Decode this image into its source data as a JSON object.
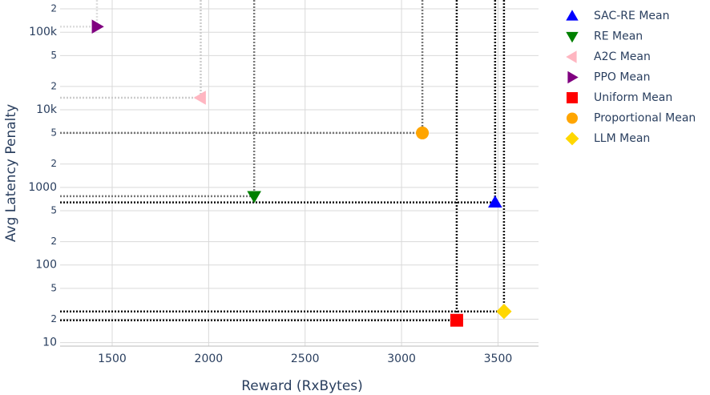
{
  "chart_data": {
    "type": "scatter",
    "x_label": "Reward (RxBytes)",
    "y_label": "Avg Latency Penalty",
    "xlim": [
      1230,
      3710
    ],
    "xticks": [
      1500,
      2000,
      2500,
      3000,
      3500
    ],
    "ylim": [
      9,
      260000
    ],
    "y_log": true,
    "yticks": [
      10,
      {
        "value": 20,
        "label": "2"
      },
      {
        "value": 50,
        "label": "5"
      },
      100,
      {
        "value": 200,
        "label": "2"
      },
      {
        "value": 500,
        "label": "5"
      },
      1000,
      {
        "value": 2000,
        "label": "2"
      },
      {
        "value": 5000,
        "label": "5"
      },
      {
        "value": 10000,
        "label": "10k"
      },
      {
        "value": 20000,
        "label": "2"
      },
      {
        "value": 50000,
        "label": "5"
      },
      {
        "value": 100000,
        "label": "100k"
      },
      {
        "value": 200000,
        "label": "2"
      }
    ],
    "grid": true,
    "legend": "right",
    "series": [
      {
        "name": "SAC-RE Mean",
        "color": "#0000ff",
        "marker": "triangle-up",
        "x": [
          3485
        ],
        "values": [
          640
        ]
      },
      {
        "name": "RE Mean",
        "color": "#008000",
        "marker": "triangle-down",
        "x": [
          2236
        ],
        "values": [
          770
        ]
      },
      {
        "name": "A2C Mean",
        "color": "#ffb6c1",
        "marker": "triangle-left",
        "x": [
          1959
        ],
        "values": [
          14300
        ]
      },
      {
        "name": "PPO Mean",
        "color": "#800080",
        "marker": "triangle-right",
        "x": [
          1421
        ],
        "values": [
          118000
        ]
      },
      {
        "name": "Uniform Mean",
        "color": "#ff0000",
        "marker": "square",
        "x": [
          3286
        ],
        "values": [
          19.4
        ]
      },
      {
        "name": "Proportional Mean",
        "color": "#ffa500",
        "marker": "circle",
        "x": [
          3108
        ],
        "values": [
          5030
        ]
      },
      {
        "name": "LLM Mean",
        "color": "#ffd700",
        "marker": "diamond",
        "x": [
          3531
        ],
        "values": [
          25.2
        ]
      }
    ]
  }
}
